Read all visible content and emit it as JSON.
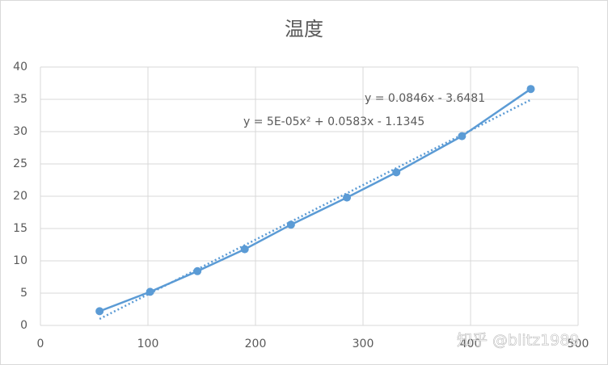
{
  "chart_data": {
    "type": "scatter-line",
    "title": "温度",
    "x": [
      55,
      102,
      146,
      190,
      233,
      285,
      331,
      392,
      456
    ],
    "series": [
      {
        "name": "温度",
        "color": "#5b9bd5",
        "values": [
          2.2,
          5.2,
          8.4,
          11.8,
          15.6,
          19.8,
          23.7,
          29.3,
          36.6
        ]
      }
    ],
    "xlim": [
      0,
      500
    ],
    "xticks": [
      0,
      100,
      200,
      300,
      400,
      500
    ],
    "ylim": [
      0,
      40
    ],
    "yticks": [
      0,
      5,
      10,
      15,
      20,
      25,
      30,
      35,
      40
    ],
    "grid": true,
    "trendline": {
      "slope": 0.0846,
      "intercept": -3.6481,
      "label": "y = 0.0846x - 3.6481"
    },
    "annotations": [
      "y = 5E-05x² + 0.0583x - 1.1345"
    ],
    "watermark": "知乎 @blitz1989"
  }
}
